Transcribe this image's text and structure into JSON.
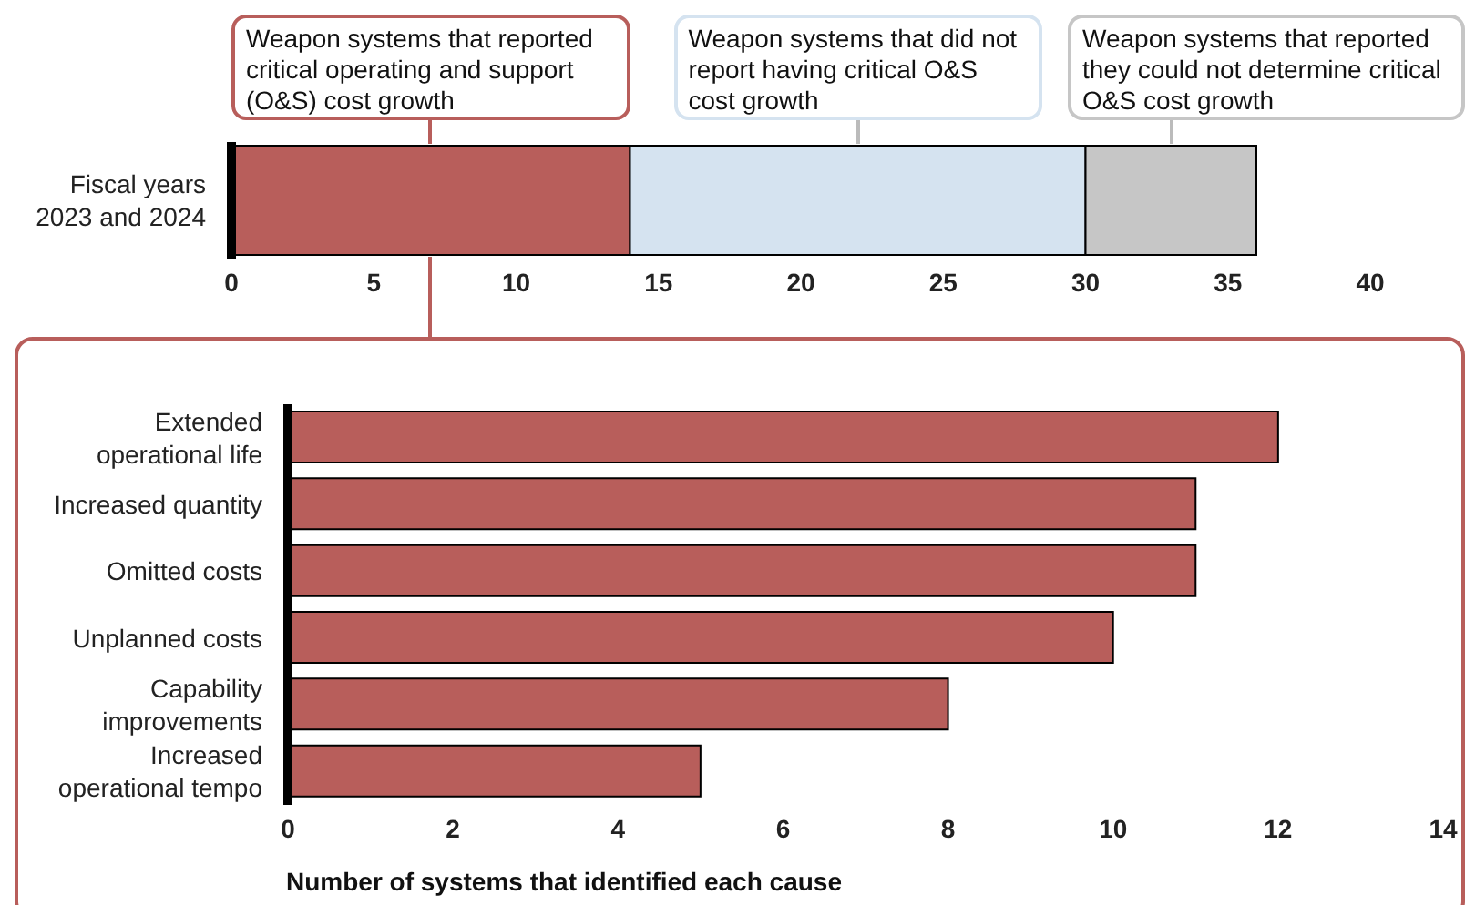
{
  "chart_data": [
    {
      "type": "bar",
      "orientation": "horizontal",
      "stacked": true,
      "categories": [
        "Fiscal years 2023 and 2024"
      ],
      "series": [
        {
          "name": "Weapon systems that reported critical operating and support (O&S) cost growth",
          "color": "#b85e5b",
          "values": [
            14
          ]
        },
        {
          "name": "Weapon systems that did not report having critical O&S cost growth",
          "color": "#d5e3f0",
          "values": [
            16
          ]
        },
        {
          "name": "Weapon systems that reported they could not determine critical O&S cost growth",
          "color": "#c6c6c6",
          "values": [
            6
          ]
        }
      ],
      "xlim": [
        0,
        40
      ],
      "xticks": [
        0,
        5,
        10,
        15,
        20,
        25,
        30,
        35,
        40
      ]
    },
    {
      "type": "bar",
      "orientation": "horizontal",
      "categories": [
        "Extended operational life",
        "Increased quantity",
        "Omitted costs",
        "Unplanned costs",
        "Capability improvements",
        "Increased operational tempo"
      ],
      "values": [
        12,
        11,
        11,
        10,
        8,
        5
      ],
      "color": "#b85e5b",
      "xlim": [
        0,
        14
      ],
      "xticks": [
        0,
        2,
        4,
        6,
        8,
        10,
        12,
        14
      ],
      "xlabel": "Number of systems that identified each cause"
    }
  ]
}
